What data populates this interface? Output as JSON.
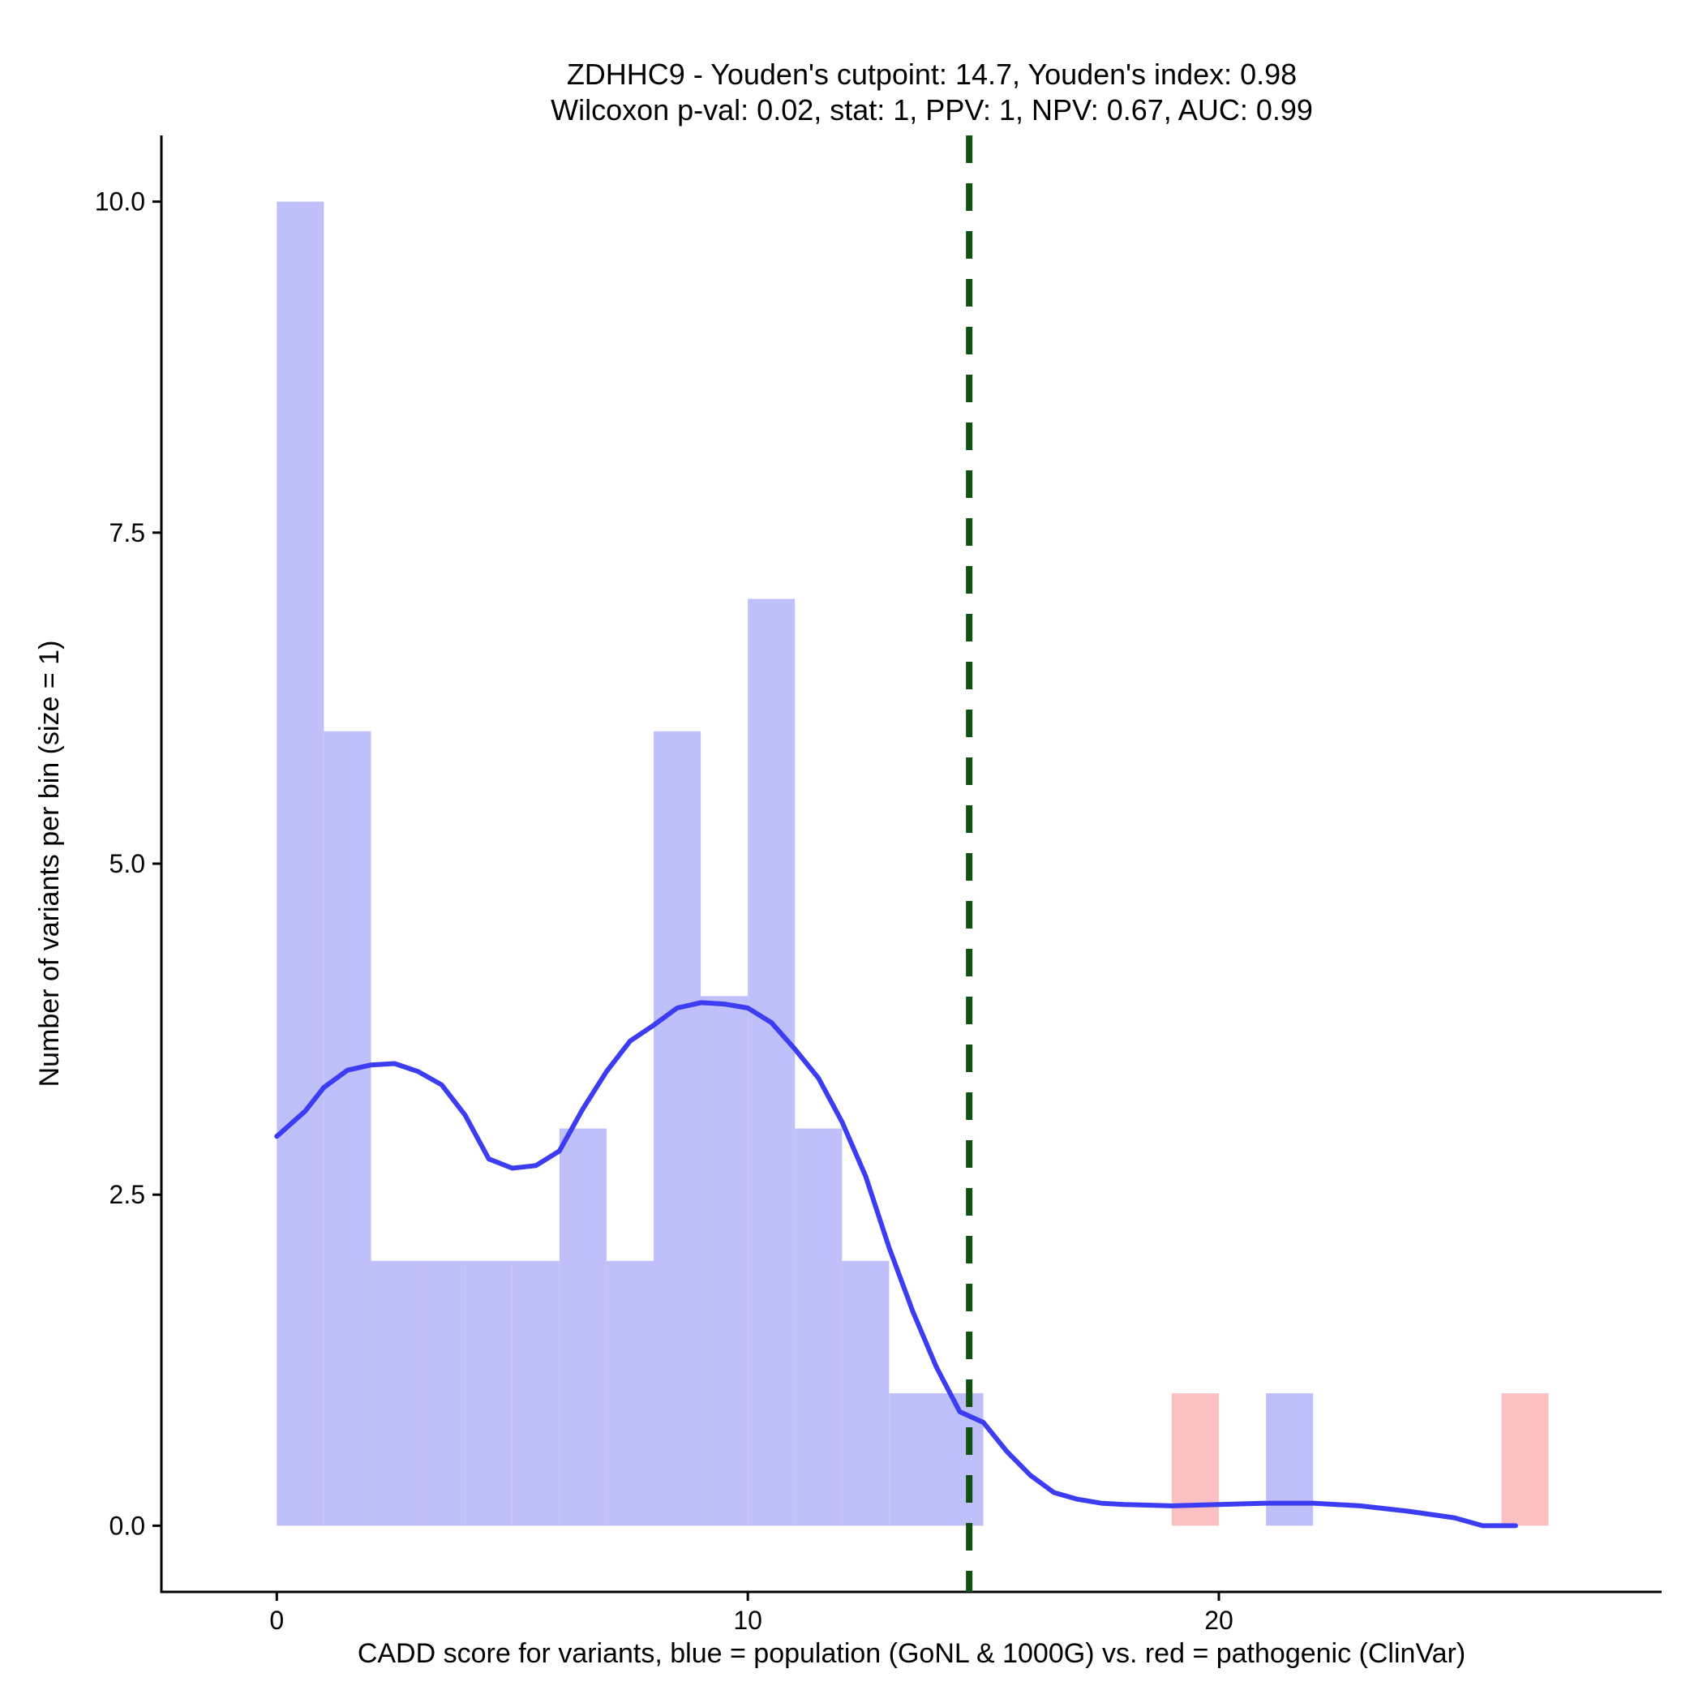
{
  "chart_data": {
    "type": "bar",
    "title_lines": [
      "ZDHHC9 - Youden's cutpoint: 14.7, Youden's index: 0.98",
      "Wilcoxon p-val: 0.02, stat: 1, PPV: 1, NPV: 0.67, AUC: 0.99"
    ],
    "xlabel": "CADD score for variants, blue = population (GoNL & 1000G) vs. red = pathogenic (ClinVar)",
    "ylabel": "Number of variants per bin (size = 1)",
    "xlim": [
      -2.45,
      29.4
    ],
    "ylim": [
      -0.5,
      10.5
    ],
    "x_ticks": [
      0,
      10,
      20
    ],
    "x_tick_labels": [
      "0",
      "10",
      "20"
    ],
    "y_ticks": [
      0,
      2.5,
      5,
      7.5,
      10
    ],
    "y_tick_labels": [
      "0.0",
      "2.5",
      "5.0",
      "7.5",
      "10.0"
    ],
    "bin_size": 1,
    "series": [
      {
        "name": "population",
        "color": "#bfbff9",
        "bins": [
          {
            "x0": 0,
            "x1": 1,
            "count": 10
          },
          {
            "x0": 1,
            "x1": 2,
            "count": 6
          },
          {
            "x0": 2,
            "x1": 3,
            "count": 2
          },
          {
            "x0": 3,
            "x1": 4,
            "count": 2
          },
          {
            "x0": 4,
            "x1": 5,
            "count": 2
          },
          {
            "x0": 5,
            "x1": 6,
            "count": 2
          },
          {
            "x0": 6,
            "x1": 7,
            "count": 3
          },
          {
            "x0": 7,
            "x1": 8,
            "count": 2
          },
          {
            "x0": 8,
            "x1": 9,
            "count": 6
          },
          {
            "x0": 9,
            "x1": 10,
            "count": 4
          },
          {
            "x0": 10,
            "x1": 11,
            "count": 7
          },
          {
            "x0": 11,
            "x1": 12,
            "count": 3
          },
          {
            "x0": 12,
            "x1": 13,
            "count": 2
          },
          {
            "x0": 13,
            "x1": 14,
            "count": 1
          },
          {
            "x0": 14,
            "x1": 15,
            "count": 1
          },
          {
            "x0": 21,
            "x1": 22,
            "count": 1
          }
        ]
      },
      {
        "name": "pathogenic",
        "color": "#fcbfc2",
        "bins": [
          {
            "x0": 19,
            "x1": 20,
            "count": 1
          },
          {
            "x0": 26,
            "x1": 27,
            "count": 1
          }
        ]
      }
    ],
    "density_curve": {
      "color": "#3c3cf2",
      "points": [
        [
          0,
          2.94
        ],
        [
          0.6,
          3.13
        ],
        [
          1.0,
          3.31
        ],
        [
          1.5,
          3.44
        ],
        [
          2.0,
          3.48
        ],
        [
          2.5,
          3.49
        ],
        [
          3.0,
          3.43
        ],
        [
          3.5,
          3.33
        ],
        [
          4.0,
          3.1
        ],
        [
          4.5,
          2.77
        ],
        [
          5.0,
          2.7
        ],
        [
          5.5,
          2.72
        ],
        [
          6.0,
          2.83
        ],
        [
          6.5,
          3.15
        ],
        [
          7.0,
          3.43
        ],
        [
          7.5,
          3.66
        ],
        [
          8.0,
          3.78
        ],
        [
          8.5,
          3.91
        ],
        [
          9.0,
          3.95
        ],
        [
          9.5,
          3.94
        ],
        [
          10.0,
          3.91
        ],
        [
          10.5,
          3.8
        ],
        [
          11.0,
          3.6
        ],
        [
          11.5,
          3.38
        ],
        [
          12.0,
          3.05
        ],
        [
          12.5,
          2.64
        ],
        [
          13.0,
          2.1
        ],
        [
          13.5,
          1.62
        ],
        [
          14.0,
          1.2
        ],
        [
          14.5,
          0.86
        ],
        [
          15.0,
          0.78
        ],
        [
          15.5,
          0.56
        ],
        [
          16.0,
          0.38
        ],
        [
          16.5,
          0.25
        ],
        [
          17.0,
          0.2
        ],
        [
          17.5,
          0.17
        ],
        [
          18.0,
          0.16
        ],
        [
          19.0,
          0.15
        ],
        [
          20.0,
          0.16
        ],
        [
          21.0,
          0.17
        ],
        [
          22.0,
          0.17
        ],
        [
          23.0,
          0.15
        ],
        [
          24.0,
          0.11
        ],
        [
          25.0,
          0.06
        ],
        [
          25.6,
          0.0
        ],
        [
          26.3,
          0.0
        ]
      ]
    },
    "cutpoint": {
      "x": 14.7,
      "color": "#0f520f",
      "style": "dashed"
    },
    "grid": false,
    "legend": "none"
  }
}
